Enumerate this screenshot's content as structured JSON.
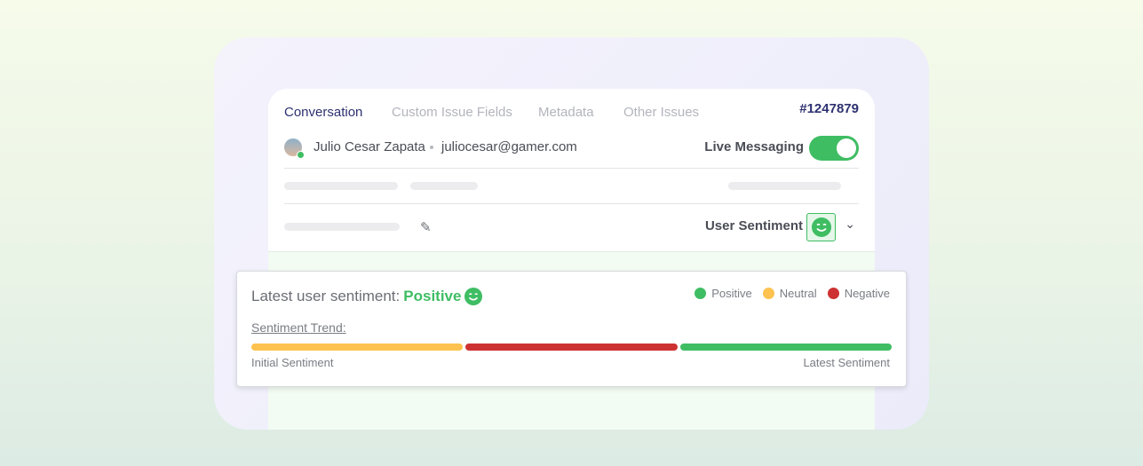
{
  "tabs": [
    {
      "label": "Conversation",
      "active": true
    },
    {
      "label": "Custom Issue Fields"
    },
    {
      "label": "Metadata"
    },
    {
      "label": "Other Issues"
    }
  ],
  "ticket_id": "#1247879",
  "user": {
    "name": "Julio Cesar Zapata",
    "email": "juliocesar@gamer.com",
    "status": "online"
  },
  "live_messaging": {
    "label": "Live Messaging",
    "enabled": true
  },
  "user_sentiment": {
    "label": "User Sentiment",
    "icon": "smiley-icon"
  },
  "popup": {
    "latest_label": "Latest user sentiment:",
    "latest_value": "Positive",
    "legend": [
      {
        "label": "Positive",
        "color": "#3fbd63"
      },
      {
        "label": "Neutral",
        "color": "#fdc24f"
      },
      {
        "label": "Negative",
        "color": "#cd3131"
      }
    ],
    "trend_label": "Sentiment Trend:",
    "trend": [
      {
        "sentiment": "Neutral",
        "color": "#fdc24f"
      },
      {
        "sentiment": "Negative",
        "color": "#cd3131"
      },
      {
        "sentiment": "Positive",
        "color": "#3fbd63"
      }
    ],
    "initial_label": "Initial Sentiment",
    "latest_sentiment_label": "Latest Sentiment"
  }
}
